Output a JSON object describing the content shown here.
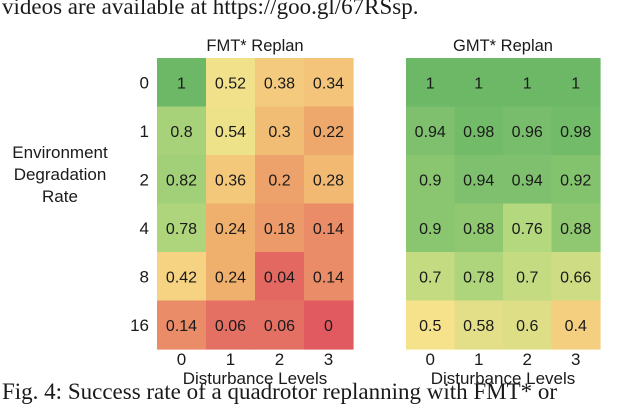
{
  "caption": {
    "top": "videos are available at https://goo.gl/67RSsp.",
    "bottom": "Fig. 4: Success rate of a quadrotor replanning with FMT* or"
  },
  "chart_data": [
    {
      "type": "heatmap",
      "title": "FMT* Replan",
      "xlabel": "Disturbance Levels",
      "ylabel": [
        "Environment",
        "Degradation",
        "Rate"
      ],
      "x": [
        "0",
        "1",
        "2",
        "3"
      ],
      "y": [
        "0",
        "1",
        "2",
        "4",
        "8",
        "16"
      ],
      "values": [
        [
          "1",
          "0.52",
          "0.38",
          "0.34"
        ],
        [
          "0.8",
          "0.54",
          "0.3",
          "0.22"
        ],
        [
          "0.82",
          "0.36",
          "0.2",
          "0.28"
        ],
        [
          "0.78",
          "0.24",
          "0.18",
          "0.14"
        ],
        [
          "0.42",
          "0.24",
          "0.04",
          "0.14"
        ],
        [
          "0.14",
          "0.06",
          "0.06",
          "0"
        ]
      ],
      "colormap": [
        "#e05a5f",
        "#f0b36e",
        "#f7e28c",
        "#b7d97e",
        "#6cb867"
      ]
    },
    {
      "type": "heatmap",
      "title": "GMT* Replan",
      "xlabel": "Disturbance Levels",
      "x": [
        "0",
        "1",
        "2",
        "3"
      ],
      "y": [
        "0",
        "1",
        "2",
        "4",
        "8",
        "16"
      ],
      "values": [
        [
          "1",
          "1",
          "1",
          "1"
        ],
        [
          "0.94",
          "0.98",
          "0.96",
          "0.98"
        ],
        [
          "0.9",
          "0.94",
          "0.94",
          "0.92"
        ],
        [
          "0.9",
          "0.88",
          "0.76",
          "0.88"
        ],
        [
          "0.7",
          "0.78",
          "0.7",
          "0.66"
        ],
        [
          "0.5",
          "0.58",
          "0.6",
          "0.4"
        ]
      ],
      "colormap": [
        "#e05a5f",
        "#f0b36e",
        "#f7e28c",
        "#b7d97e",
        "#6cb867"
      ]
    }
  ]
}
